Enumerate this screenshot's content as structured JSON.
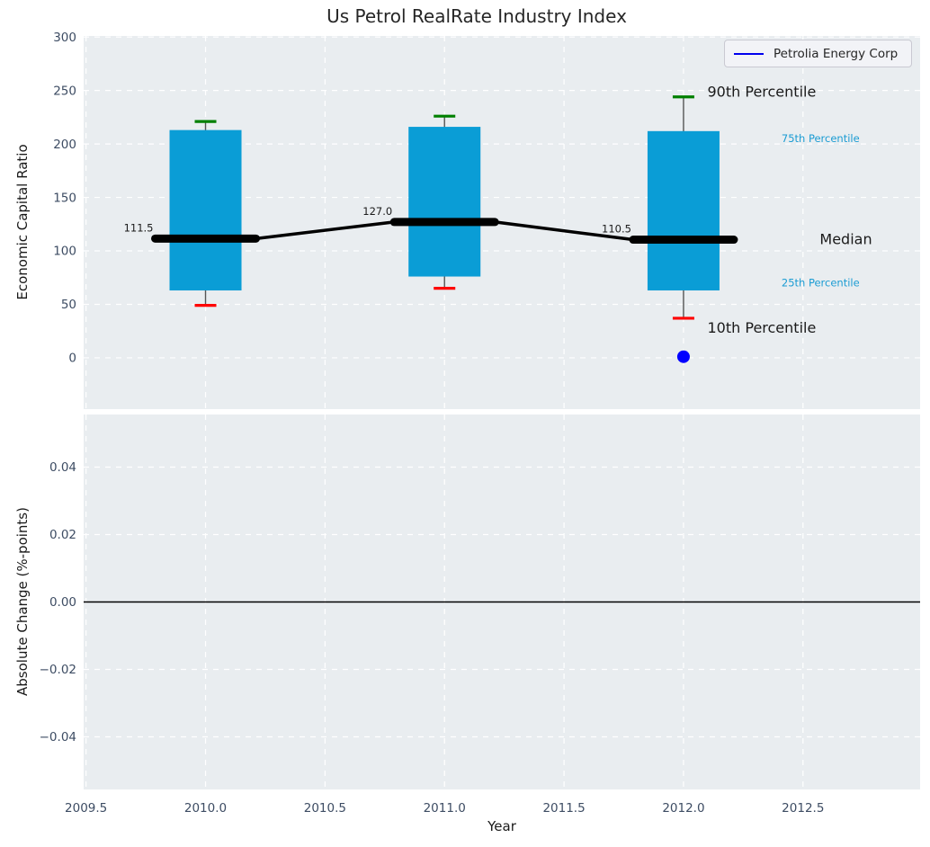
{
  "legend": {
    "label": "Petrolia Energy Corp",
    "line_color": "#0000ee"
  },
  "chart_data": {
    "type": "boxplot",
    "title": "Us Petrol RealRate Industry Index",
    "x": {
      "label": "Year",
      "lim": [
        2009.49,
        2012.99
      ],
      "ticks": [
        {
          "v": 2009.5,
          "label": "2009.5"
        },
        {
          "v": 2010.0,
          "label": "2010.0"
        },
        {
          "v": 2010.5,
          "label": "2010.5"
        },
        {
          "v": 2011.0,
          "label": "2011.0"
        },
        {
          "v": 2011.5,
          "label": "2011.5"
        },
        {
          "v": 2012.0,
          "label": "2012.0"
        },
        {
          "v": 2012.5,
          "label": "2012.5"
        }
      ]
    },
    "top": {
      "ylabel": "Economic Capital Ratio",
      "ylim": [
        -48,
        301
      ],
      "yticks": [
        {
          "v": 0,
          "label": "0"
        },
        {
          "v": 50,
          "label": "50"
        },
        {
          "v": 100,
          "label": "100"
        },
        {
          "v": 150,
          "label": "150"
        },
        {
          "v": 200,
          "label": "200"
        },
        {
          "v": 250,
          "label": "250"
        },
        {
          "v": 300,
          "label": "300"
        }
      ],
      "boxes": [
        {
          "x": 2010,
          "p10": 49,
          "q1": 63,
          "median": 111.5,
          "q3": 213,
          "p90": 221,
          "median_label": "111.5"
        },
        {
          "x": 2011,
          "p10": 65,
          "q1": 76,
          "median": 127.0,
          "q3": 216,
          "p90": 226,
          "median_label": "127.0"
        },
        {
          "x": 2012,
          "p10": 37,
          "q1": 63,
          "median": 110.5,
          "q3": 212,
          "p90": 244,
          "median_label": "110.5"
        }
      ],
      "company_series": {
        "name": "Petrolia Energy Corp",
        "points": [
          {
            "x": 2012,
            "y": 1
          }
        ]
      },
      "annotations": [
        {
          "text": "90th Percentile",
          "x": 2012.1,
          "y": 249,
          "size": 16,
          "color": "#1a1a1a",
          "anchor": "start"
        },
        {
          "text": "75th Percentile",
          "x": 2012.41,
          "y": 205,
          "size": 11.5,
          "color": "#1b9cd3",
          "anchor": "start"
        },
        {
          "text": "Median",
          "x": 2012.57,
          "y": 111,
          "size": 16,
          "color": "#1a1a1a",
          "anchor": "start"
        },
        {
          "text": "25th Percentile",
          "x": 2012.41,
          "y": 70,
          "size": 11.5,
          "color": "#1b9cd3",
          "anchor": "start"
        },
        {
          "text": "10th Percentile",
          "x": 2012.1,
          "y": 28,
          "size": 16,
          "color": "#1a1a1a",
          "anchor": "start"
        }
      ]
    },
    "bottom": {
      "ylabel": "Absolute Change (%-points)",
      "ylim": [
        -0.0556,
        0.0556
      ],
      "yticks": [
        {
          "v": 0.04,
          "label": "0.04"
        },
        {
          "v": 0.02,
          "label": "0.02"
        },
        {
          "v": 0.0,
          "label": "0.00"
        },
        {
          "v": -0.02,
          "label": "−0.02"
        },
        {
          "v": -0.04,
          "label": "−0.04"
        }
      ],
      "zero_line": 0.0
    },
    "colors": {
      "panel_bg": "#e9edf0",
      "grid": "#ffffff",
      "tick_label": "#3d4c63",
      "box_fill": "#0a9dd6",
      "whisker": "#555555",
      "p90_cap": "#008000",
      "p10_cap": "#ff0000",
      "median_line": "#000000",
      "company_point": "#0000ff",
      "zero_line": "#000000"
    }
  }
}
